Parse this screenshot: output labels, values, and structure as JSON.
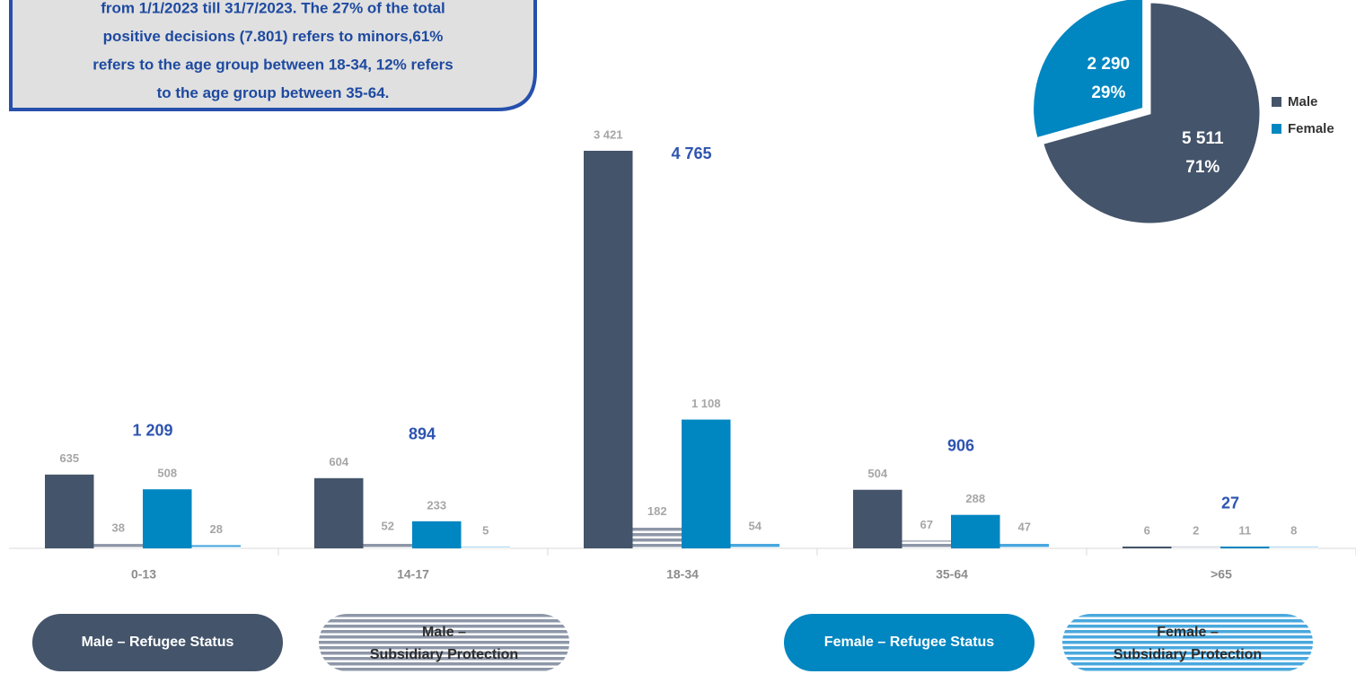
{
  "chart_data": [
    {
      "type": "bar",
      "annotation": [
        "from 1/1/2023 till 31/7/2023. The 27% of the total",
        "positive decisions (7.801) refers to minors,61%",
        "refers to the age group between 18-34, 12% refers",
        "to the age group between 35-64."
      ],
      "categories": [
        "0-13",
        "14-17",
        "18-34",
        "35-64",
        ">65"
      ],
      "series": [
        {
          "name": "Male – Refugee Status",
          "color": "#44546a",
          "hatch": false,
          "values": [
            635,
            604,
            3421,
            504,
            6
          ],
          "value_labels": [
            "635",
            "604",
            "3 421",
            "504",
            "6"
          ]
        },
        {
          "name": "Male – Subsidiary Protection",
          "color": "#8e97a8",
          "hatch": true,
          "values": [
            38,
            52,
            182,
            67,
            2
          ]
        },
        {
          "name": "Female – Refugee Status",
          "color": "#0086c1",
          "hatch": false,
          "values": [
            508,
            233,
            1108,
            288,
            11
          ],
          "value_labels": [
            "508",
            "233",
            "1 108",
            "288",
            "11"
          ]
        },
        {
          "name": "Female – Subsidiary Protection",
          "color": "#4aa8de",
          "hatch": true,
          "values": [
            28,
            5,
            54,
            47,
            8
          ]
        }
      ],
      "totals": [
        1209,
        894,
        4765,
        906,
        27
      ],
      "total_labels": [
        "1 209",
        "894",
        "4 765",
        "906",
        "27"
      ]
    },
    {
      "type": "pie",
      "categories": [
        "Male",
        "Female"
      ],
      "values": [
        5511,
        2290
      ],
      "value_labels": [
        "5 511",
        "2 290"
      ],
      "percents": [
        71,
        29
      ],
      "percent_labels": [
        "71%",
        "29%"
      ],
      "colors": [
        "#44546a",
        "#0086c1"
      ]
    }
  ]
}
